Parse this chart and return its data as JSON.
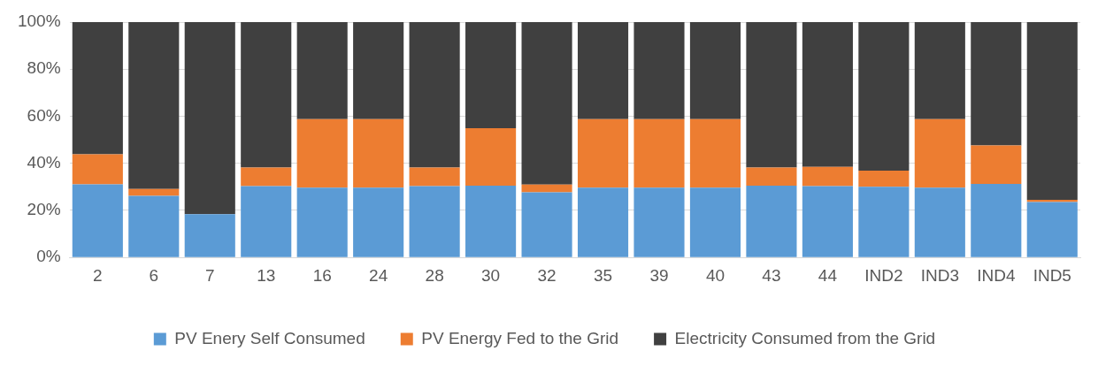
{
  "chart_data": {
    "type": "bar",
    "stacked": true,
    "categories": [
      "2",
      "6",
      "7",
      "13",
      "16",
      "24",
      "28",
      "30",
      "32",
      "35",
      "39",
      "40",
      "43",
      "44",
      "IND2",
      "IND3",
      "IND4",
      "IND5"
    ],
    "series": [
      {
        "name": "PV Enery Self Consumed",
        "color": "#5b9bd5",
        "values": [
          31.1,
          26.2,
          18.4,
          30.3,
          29.7,
          29.7,
          30.3,
          30.5,
          27.7,
          29.7,
          29.7,
          29.7,
          30.5,
          30.3,
          30.0,
          29.7,
          31.3,
          23.6
        ]
      },
      {
        "name": "PV Energy Fed to the Grid",
        "color": "#ed7d31",
        "values": [
          12.7,
          2.9,
          null,
          7.9,
          29.1,
          29.1,
          7.9,
          24.4,
          3.3,
          29.1,
          29.1,
          29.1,
          7.7,
          8.2,
          6.9,
          29.1,
          16.3,
          0.9
        ]
      },
      {
        "name": "Electricity Consumed from the Grid",
        "color": "#404040",
        "values": [
          56.2,
          70.9,
          81.6,
          61.8,
          41.2,
          41.2,
          61.8,
          45.1,
          69.0,
          41.2,
          41.2,
          41.2,
          61.8,
          61.5,
          63.1,
          41.2,
          52.4,
          75.5
        ]
      }
    ],
    "ylim": [
      0,
      100
    ],
    "yticks": [
      {
        "value": 0,
        "label": "0%"
      },
      {
        "value": 20,
        "label": "20%"
      },
      {
        "value": 40,
        "label": "40%"
      },
      {
        "value": 60,
        "label": "60%"
      },
      {
        "value": 80,
        "label": "80%"
      },
      {
        "value": 100,
        "label": "100%"
      }
    ],
    "grid": "y",
    "legend": "bottom"
  }
}
